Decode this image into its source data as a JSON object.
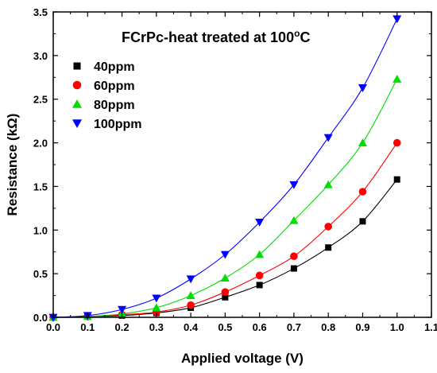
{
  "chart_data": {
    "type": "line",
    "title": "FCrPc-heat treated at 100",
    "title_superscript": "o",
    "title_suffix": "C",
    "xlabel": "Applied voltage (V)",
    "ylabel": "Resistance (kΩ)",
    "xlim": [
      0.0,
      1.1
    ],
    "ylim": [
      0.0,
      3.5
    ],
    "xticks": [
      0.0,
      0.1,
      0.2,
      0.3,
      0.4,
      0.5,
      0.6,
      0.7,
      0.8,
      0.9,
      1.0,
      1.1
    ],
    "yticks": [
      0.0,
      0.5,
      1.0,
      1.5,
      2.0,
      2.5,
      3.0,
      3.5
    ],
    "xtick_labels": [
      "0.0",
      "0.1",
      "0.2",
      "0.3",
      "0.4",
      "0.5",
      "0.6",
      "0.7",
      "0.8",
      "0.9",
      "1.0",
      "1.1"
    ],
    "ytick_labels": [
      "0.0",
      "0.5",
      "1.0",
      "1.5",
      "2.0",
      "2.5",
      "3.0",
      "3.5"
    ],
    "grid": false,
    "legend_position": "top-left",
    "x": [
      0.0,
      0.1,
      0.2,
      0.3,
      0.4,
      0.5,
      0.6,
      0.7,
      0.8,
      0.9,
      1.0
    ],
    "series": [
      {
        "name": "40ppm",
        "color": "#000000",
        "marker": "square",
        "values": [
          0.0,
          0.01,
          0.02,
          0.05,
          0.11,
          0.23,
          0.37,
          0.56,
          0.8,
          1.1,
          1.58
        ]
      },
      {
        "name": "60ppm",
        "color": "#ff0000",
        "marker": "circle",
        "values": [
          0.0,
          0.01,
          0.03,
          0.06,
          0.14,
          0.29,
          0.48,
          0.7,
          1.04,
          1.44,
          2.0
        ]
      },
      {
        "name": "80ppm",
        "color": "#00dd00",
        "marker": "triangle-up",
        "values": [
          0.0,
          0.01,
          0.04,
          0.11,
          0.25,
          0.45,
          0.72,
          1.11,
          1.52,
          2.0,
          2.73
        ]
      },
      {
        "name": "100ppm",
        "color": "#0000ff",
        "marker": "triangle-down",
        "values": [
          0.0,
          0.02,
          0.09,
          0.22,
          0.44,
          0.72,
          1.09,
          1.52,
          2.06,
          2.63,
          3.42
        ]
      }
    ]
  }
}
